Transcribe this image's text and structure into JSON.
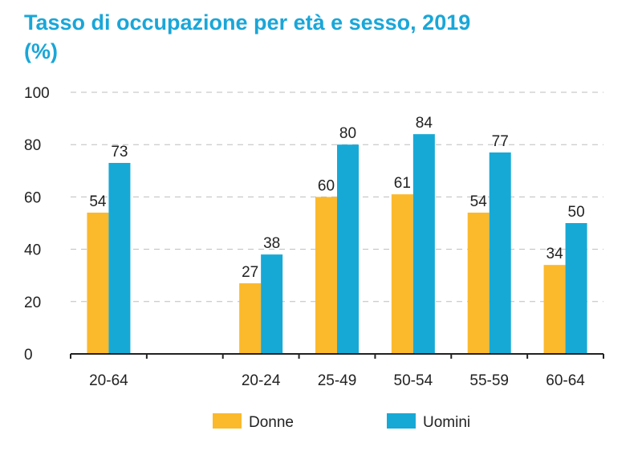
{
  "chart_data": {
    "type": "bar",
    "title": "Tasso di occupazione per età e sesso, 2019",
    "subtitle": "(%)",
    "xlabel": "",
    "ylabel": "",
    "ylim": [
      0,
      100
    ],
    "yticks": [
      0,
      20,
      40,
      60,
      80,
      100
    ],
    "grid": true,
    "legend_position": "bottom",
    "categories": [
      "20-64",
      "",
      "20-24",
      "25-49",
      "50-54",
      "55-59",
      "60-64"
    ],
    "series": [
      {
        "name": "Donne",
        "color": "#fbb92c",
        "values": [
          54,
          null,
          27,
          60,
          61,
          54,
          34
        ]
      },
      {
        "name": "Uomini",
        "color": "#17a9d6",
        "values": [
          73,
          null,
          38,
          80,
          84,
          77,
          50
        ]
      }
    ]
  }
}
